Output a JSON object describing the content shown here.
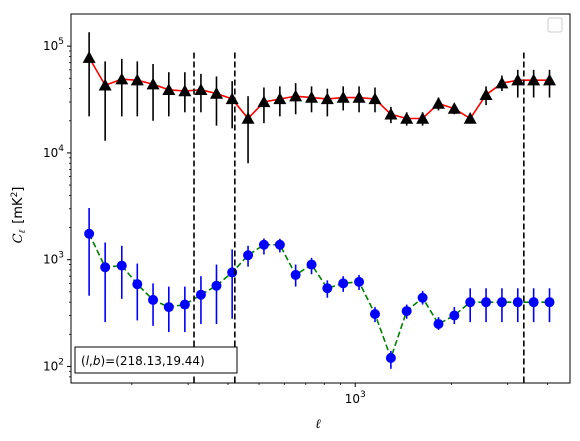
{
  "chart_data": {
    "type": "line",
    "title": "",
    "xlabel": "ℓ",
    "ylabel_main": "C",
    "ylabel_sub": "ℓ",
    "ylabel_unit": "[mK",
    "ylabel_unit_sup": "2",
    "ylabel_unit_close": "]",
    "xscale": "log",
    "yscale": "log",
    "xlim": [
      129,
      4700
    ],
    "ylim": [
      70,
      200000
    ],
    "x_ticks": [
      {
        "value": 1000,
        "base": "10",
        "exp": "3"
      }
    ],
    "y_ticks": [
      {
        "value": 100,
        "base": "10",
        "exp": "2"
      },
      {
        "value": 1000,
        "base": "10",
        "exp": "3"
      },
      {
        "value": 10000,
        "base": "10",
        "exp": "4"
      },
      {
        "value": 100000,
        "base": "10",
        "exp": "5"
      }
    ],
    "vlines": [
      313,
      420,
      3370
    ],
    "legend": "top-right",
    "annotation": {
      "prefix": "(",
      "l": "l",
      "comma": ",",
      "b": "b",
      "value": ")=(218.13,19.44)"
    },
    "series": [
      {
        "marker": "triangle",
        "color": "#000000",
        "line_color": "#ff0000",
        "line_style": "solid",
        "errbar_color": "#000000",
        "x": [
          147,
          165,
          186,
          208,
          233,
          261,
          293,
          329,
          368,
          412,
          462,
          518,
          581,
          651,
          730,
          818,
          917,
          1028,
          1153,
          1293,
          1449,
          1625,
          1822,
          2042,
          2290,
          2567,
          2878,
          3226,
          3617,
          4055
        ],
        "y": [
          78000,
          43000,
          49000,
          48000,
          44000,
          39000,
          38000,
          39000,
          36000,
          32000,
          21000,
          30000,
          32000,
          34000,
          33000,
          32000,
          33000,
          33000,
          32000,
          23000,
          21000,
          21000,
          29000,
          26000,
          21000,
          35000,
          45000,
          48000,
          48000,
          48000
        ],
        "y_err_low": [
          22000,
          13000,
          22000,
          22000,
          20000,
          22000,
          24000,
          24000,
          18000,
          17000,
          8000,
          19000,
          22000,
          23000,
          24000,
          22000,
          25000,
          24000,
          24000,
          19000,
          18000,
          18000,
          25000,
          23000,
          19000,
          28000,
          38000,
          33000,
          33000,
          33000
        ],
        "y_err_high": [
          135000,
          72000,
          76000,
          72000,
          68000,
          57000,
          57000,
          55000,
          52000,
          47000,
          34000,
          41000,
          42000,
          45000,
          42000,
          40000,
          42000,
          42000,
          41000,
          27000,
          24000,
          24000,
          33000,
          29000,
          23000,
          42000,
          53000,
          60000,
          60000,
          60000
        ]
      },
      {
        "marker": "circle",
        "color": "#0000ff",
        "line_color": "#008000",
        "line_style": "dashed",
        "errbar_color": "#0000ff",
        "x": [
          147,
          165,
          186,
          208,
          233,
          261,
          293,
          329,
          368,
          412,
          462,
          518,
          581,
          651,
          730,
          818,
          917,
          1028,
          1153,
          1293,
          1449,
          1625,
          1822,
          2042,
          2290,
          2567,
          2878,
          3226,
          3617,
          4055
        ],
        "y": [
          1750,
          850,
          880,
          590,
          420,
          360,
          380,
          470,
          570,
          760,
          1100,
          1380,
          1380,
          720,
          900,
          540,
          600,
          620,
          310,
          120,
          330,
          440,
          250,
          300,
          400,
          400,
          400,
          400,
          400,
          400
        ],
        "y_err_low": [
          460,
          260,
          430,
          270,
          240,
          210,
          210,
          250,
          250,
          280,
          860,
          1120,
          1170,
          560,
          730,
          440,
          500,
          520,
          260,
          95,
          280,
          380,
          220,
          250,
          260,
          260,
          260,
          260,
          260,
          260
        ],
        "y_err_high": [
          3050,
          1450,
          1350,
          920,
          600,
          560,
          560,
          700,
          900,
          1250,
          1350,
          1580,
          1570,
          900,
          1040,
          640,
          700,
          720,
          360,
          140,
          380,
          510,
          290,
          360,
          540,
          540,
          540,
          540,
          540,
          540
        ]
      }
    ]
  }
}
